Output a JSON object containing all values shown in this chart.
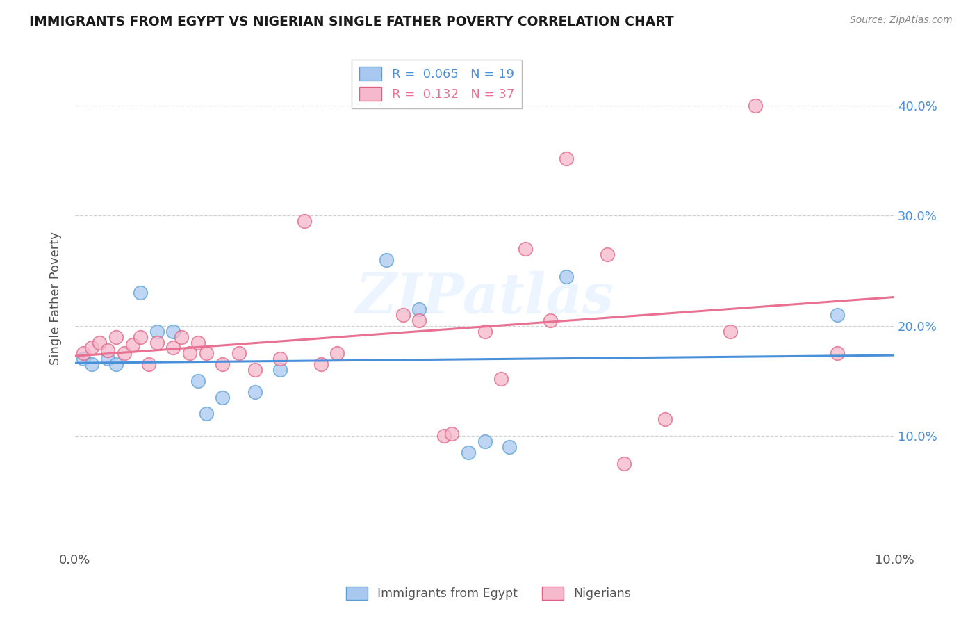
{
  "title": "IMMIGRANTS FROM EGYPT VS NIGERIAN SINGLE FATHER POVERTY CORRELATION CHART",
  "source": "Source: ZipAtlas.com",
  "ylabel": "Single Father Poverty",
  "watermark": "ZIPatlas",
  "legend_line1": "R =  0.065   N = 19",
  "legend_line2": "R =  0.132   N = 37",
  "egypt_points": [
    [
      0.001,
      0.17
    ],
    [
      0.002,
      0.165
    ],
    [
      0.004,
      0.17
    ],
    [
      0.005,
      0.165
    ],
    [
      0.008,
      0.23
    ],
    [
      0.01,
      0.195
    ],
    [
      0.012,
      0.195
    ],
    [
      0.015,
      0.15
    ],
    [
      0.016,
      0.12
    ],
    [
      0.018,
      0.135
    ],
    [
      0.022,
      0.14
    ],
    [
      0.025,
      0.16
    ],
    [
      0.038,
      0.26
    ],
    [
      0.042,
      0.215
    ],
    [
      0.048,
      0.085
    ],
    [
      0.05,
      0.095
    ],
    [
      0.053,
      0.09
    ],
    [
      0.06,
      0.245
    ],
    [
      0.093,
      0.21
    ]
  ],
  "nigeria_points": [
    [
      0.001,
      0.175
    ],
    [
      0.002,
      0.18
    ],
    [
      0.003,
      0.185
    ],
    [
      0.004,
      0.178
    ],
    [
      0.005,
      0.19
    ],
    [
      0.006,
      0.175
    ],
    [
      0.007,
      0.183
    ],
    [
      0.008,
      0.19
    ],
    [
      0.009,
      0.165
    ],
    [
      0.01,
      0.185
    ],
    [
      0.012,
      0.18
    ],
    [
      0.013,
      0.19
    ],
    [
      0.014,
      0.175
    ],
    [
      0.015,
      0.185
    ],
    [
      0.016,
      0.175
    ],
    [
      0.018,
      0.165
    ],
    [
      0.02,
      0.175
    ],
    [
      0.022,
      0.16
    ],
    [
      0.025,
      0.17
    ],
    [
      0.028,
      0.295
    ],
    [
      0.03,
      0.165
    ],
    [
      0.032,
      0.175
    ],
    [
      0.04,
      0.21
    ],
    [
      0.042,
      0.205
    ],
    [
      0.045,
      0.1
    ],
    [
      0.046,
      0.102
    ],
    [
      0.05,
      0.195
    ],
    [
      0.052,
      0.152
    ],
    [
      0.055,
      0.27
    ],
    [
      0.058,
      0.205
    ],
    [
      0.06,
      0.352
    ],
    [
      0.065,
      0.265
    ],
    [
      0.067,
      0.075
    ],
    [
      0.072,
      0.115
    ],
    [
      0.08,
      0.195
    ],
    [
      0.083,
      0.4
    ],
    [
      0.093,
      0.175
    ]
  ],
  "egypt_color": "#a8c8f0",
  "egypt_edge": "#5a9fd4",
  "nigeria_color": "#f5b8cc",
  "nigeria_edge": "#e06080",
  "trend_egypt_color": "#4a90d9",
  "trend_nigeria_color": "#e87090",
  "xlim": [
    0.0,
    0.1
  ],
  "ylim": [
    0.0,
    0.45
  ],
  "background": "#ffffff",
  "grid_color": "#cccccc"
}
